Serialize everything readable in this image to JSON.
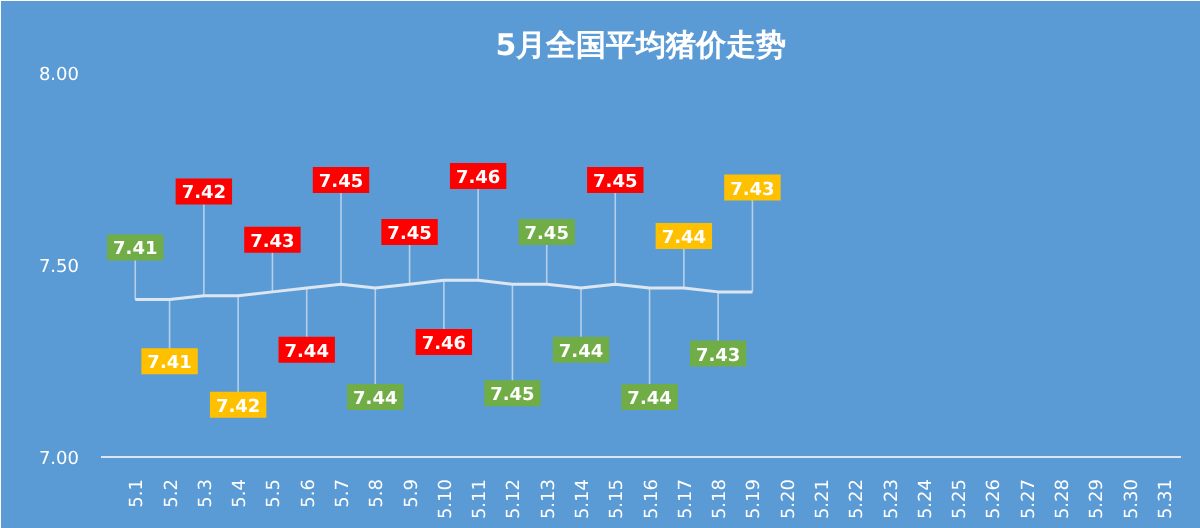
{
  "chart_data": {
    "type": "line",
    "title": "5月全国平均猪价走势",
    "categories": [
      "5.1",
      "5.2",
      "5.3",
      "5.4",
      "5.5",
      "5.6",
      "5.7",
      "5.8",
      "5.9",
      "5.10",
      "5.11",
      "5.12",
      "5.13",
      "5.14",
      "5.15",
      "5.16",
      "5.17",
      "5.18",
      "5.19",
      "5.20",
      "5.21",
      "5.22",
      "5.23",
      "5.24",
      "5.25",
      "5.26",
      "5.27",
      "5.28",
      "5.29",
      "5.30",
      "5.31"
    ],
    "series": [
      {
        "color": "#dce6f2",
        "values": [
          7.41,
          7.41,
          7.42,
          7.42,
          7.43,
          7.44,
          7.45,
          7.44,
          7.45,
          7.46,
          7.46,
          7.45,
          7.45,
          7.44,
          7.45,
          7.44,
          7.44,
          7.43,
          7.43,
          null,
          null,
          null,
          null,
          null,
          null,
          null,
          null,
          null,
          null,
          null,
          null
        ],
        "value_labels": [
          "7.41",
          "7.41",
          "7.42",
          "7.42",
          "7.43",
          "7.44",
          "7.45",
          "7.44",
          "7.45",
          "7.46",
          "7.46",
          "7.45",
          "7.45",
          "7.44",
          "7.45",
          "7.44",
          "7.44",
          "7.43",
          "7.43",
          null,
          null,
          null,
          null,
          null,
          null,
          null,
          null,
          null,
          null,
          null,
          null
        ],
        "colors": [
          "#70ad47",
          "#ffc000",
          "#ff0000",
          "#ffc000",
          "#ff0000",
          "#ff0000",
          "#ff0000",
          "#70ad47",
          "#ff0000",
          "#ff0000",
          "#ff0000",
          "#70ad47",
          "#70ad47",
          "#70ad47",
          "#ff0000",
          "#70ad47",
          "#ffc000",
          "#70ad47",
          "#ffc000",
          null,
          null,
          null,
          null,
          null,
          null,
          null,
          null,
          null,
          null,
          null,
          null
        ]
      }
    ],
    "ylim": [
      7,
      8
    ],
    "yticks": [
      {
        "value": 7,
        "label": "7.00"
      },
      {
        "value": 7.5,
        "label": "7.50"
      },
      {
        "value": 8,
        "label": "8.00"
      }
    ],
    "grid": false,
    "marker": "none",
    "line_style": "solid"
  }
}
